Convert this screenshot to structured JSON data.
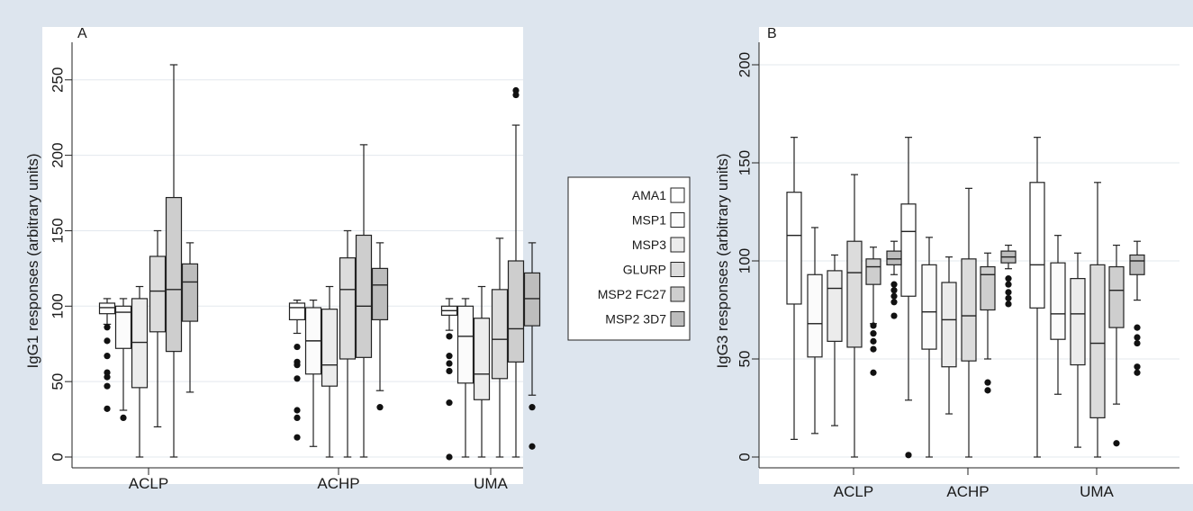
{
  "legend": {
    "placement": "between panels",
    "items": [
      {
        "label": "AMA1",
        "color": "#ffffff"
      },
      {
        "label": "MSP1",
        "color": "#fbfbfb"
      },
      {
        "label": "MSP3",
        "color": "#ececec"
      },
      {
        "label": "GLURP",
        "color": "#dcdcdc"
      },
      {
        "label": "MSP2 FC27",
        "color": "#cecece"
      },
      {
        "label": "MSP2 3D7",
        "color": "#bdbdbd"
      }
    ]
  },
  "chart_data": [
    {
      "type": "box",
      "panel_label": "A",
      "ylabel": "IgG1 responses (arbitrary units)",
      "ylim": [
        0,
        260
      ],
      "yticks": [
        0,
        50,
        100,
        150,
        200,
        250
      ],
      "grid": true,
      "categories": [
        "ACLP",
        "ACHP",
        "UMA"
      ],
      "series": [
        {
          "name": "AMA1",
          "boxes": [
            {
              "low": 88,
              "q1": 95,
              "median": 99,
              "q3": 102,
              "high": 105,
              "outliers": [
                86,
                77,
                67,
                56,
                53,
                47,
                32
              ]
            },
            {
              "low": 82,
              "q1": 91,
              "median": 99,
              "q3": 102,
              "high": 104,
              "outliers": [
                73,
                63,
                61,
                52,
                31,
                26,
                13
              ]
            },
            {
              "low": 84,
              "q1": 94,
              "median": 97,
              "q3": 100,
              "high": 105,
              "outliers": [
                80,
                67,
                62,
                57,
                36,
                0
              ]
            }
          ]
        },
        {
          "name": "MSP1",
          "boxes": [
            {
              "low": 31,
              "q1": 72,
              "median": 96,
              "q3": 100,
              "high": 105,
              "outliers": [
                26
              ]
            },
            {
              "low": 7,
              "q1": 55,
              "median": 77,
              "q3": 99,
              "high": 104,
              "outliers": []
            },
            {
              "low": 0,
              "q1": 49,
              "median": 80,
              "q3": 100,
              "high": 105,
              "outliers": []
            }
          ]
        },
        {
          "name": "MSP3",
          "boxes": [
            {
              "low": 0,
              "q1": 46,
              "median": 76,
              "q3": 105,
              "high": 113,
              "outliers": []
            },
            {
              "low": 0,
              "q1": 47,
              "median": 61,
              "q3": 98,
              "high": 113,
              "outliers": []
            },
            {
              "low": 0,
              "q1": 38,
              "median": 55,
              "q3": 92,
              "high": 113,
              "outliers": []
            }
          ]
        },
        {
          "name": "GLURP",
          "boxes": [
            {
              "low": 20,
              "q1": 83,
              "median": 110,
              "q3": 133,
              "high": 150,
              "outliers": []
            },
            {
              "low": 0,
              "q1": 65,
              "median": 111,
              "q3": 132,
              "high": 150,
              "outliers": []
            },
            {
              "low": 0,
              "q1": 52,
              "median": 78,
              "q3": 111,
              "high": 145,
              "outliers": []
            }
          ]
        },
        {
          "name": "MSP2 FC27",
          "boxes": [
            {
              "low": 0,
              "q1": 70,
              "median": 111,
              "q3": 172,
              "high": 260,
              "outliers": []
            },
            {
              "low": 0,
              "q1": 66,
              "median": 100,
              "q3": 147,
              "high": 207,
              "outliers": []
            },
            {
              "low": 0,
              "q1": 63,
              "median": 85,
              "q3": 130,
              "high": 220,
              "outliers": [
                243,
                240
              ]
            }
          ]
        },
        {
          "name": "MSP2 3D7",
          "boxes": [
            {
              "low": 43,
              "q1": 90,
              "median": 116,
              "q3": 128,
              "high": 142,
              "outliers": []
            },
            {
              "low": 44,
              "q1": 91,
              "median": 114,
              "q3": 125,
              "high": 142,
              "outliers": [
                33
              ]
            },
            {
              "low": 41,
              "q1": 87,
              "median": 105,
              "q3": 122,
              "high": 142,
              "outliers": [
                33,
                7
              ]
            }
          ]
        }
      ]
    },
    {
      "type": "box",
      "panel_label": "B",
      "ylabel": "IgG3 responses (arbitrary units)",
      "ylim": [
        0,
        200
      ],
      "yticks": [
        0,
        50,
        100,
        150,
        200
      ],
      "grid": true,
      "categories": [
        "ACLP",
        "ACHP",
        "UMA"
      ],
      "series": [
        {
          "name": "AMA1",
          "boxes": [
            {
              "low": 9,
              "q1": 78,
              "median": 113,
              "q3": 135,
              "high": 163,
              "outliers": []
            },
            {
              "low": 29,
              "q1": 82,
              "median": 115,
              "q3": 129,
              "high": 163,
              "outliers": [
                1
              ]
            },
            {
              "low": 0,
              "q1": 76,
              "median": 98,
              "q3": 140,
              "high": 163,
              "outliers": []
            }
          ]
        },
        {
          "name": "MSP1",
          "boxes": [
            {
              "low": 12,
              "q1": 51,
              "median": 68,
              "q3": 93,
              "high": 117,
              "outliers": []
            },
            {
              "low": 0,
              "q1": 55,
              "median": 74,
              "q3": 98,
              "high": 112,
              "outliers": []
            },
            {
              "low": 32,
              "q1": 60,
              "median": 73,
              "q3": 99,
              "high": 113,
              "outliers": []
            }
          ]
        },
        {
          "name": "MSP3",
          "boxes": [
            {
              "low": 16,
              "q1": 59,
              "median": 86,
              "q3": 95,
              "high": 103,
              "outliers": []
            },
            {
              "low": 22,
              "q1": 46,
              "median": 70,
              "q3": 89,
              "high": 102,
              "outliers": []
            },
            {
              "low": 5,
              "q1": 47,
              "median": 73,
              "q3": 91,
              "high": 104,
              "outliers": []
            }
          ]
        },
        {
          "name": "GLURP",
          "boxes": [
            {
              "low": 0,
              "q1": 56,
              "median": 94,
              "q3": 110,
              "high": 144,
              "outliers": []
            },
            {
              "low": 0,
              "q1": 49,
              "median": 72,
              "q3": 101,
              "high": 137,
              "outliers": []
            },
            {
              "low": 0,
              "q1": 20,
              "median": 58,
              "q3": 98,
              "high": 140,
              "outliers": []
            }
          ]
        },
        {
          "name": "MSP2 FC27",
          "boxes": [
            {
              "low": 68,
              "q1": 88,
              "median": 97,
              "q3": 101,
              "high": 107,
              "outliers": [
                67,
                63,
                59,
                55,
                43
              ]
            },
            {
              "low": 50,
              "q1": 75,
              "median": 93,
              "q3": 97,
              "high": 104,
              "outliers": [
                38,
                34
              ]
            },
            {
              "low": 27,
              "q1": 66,
              "median": 85,
              "q3": 97,
              "high": 108,
              "outliers": [
                7
              ]
            }
          ]
        },
        {
          "name": "MSP2 3D7",
          "boxes": [
            {
              "low": 93,
              "q1": 98,
              "median": 101,
              "q3": 105,
              "high": 110,
              "outliers": [
                88,
                85,
                82,
                79,
                72
              ]
            },
            {
              "low": 96,
              "q1": 99,
              "median": 102,
              "q3": 105,
              "high": 108,
              "outliers": [
                91,
                88,
                84,
                81,
                78
              ]
            },
            {
              "low": 80,
              "q1": 93,
              "median": 100,
              "q3": 103,
              "high": 110,
              "outliers": [
                66,
                61,
                58,
                46,
                43
              ]
            }
          ]
        }
      ]
    }
  ]
}
